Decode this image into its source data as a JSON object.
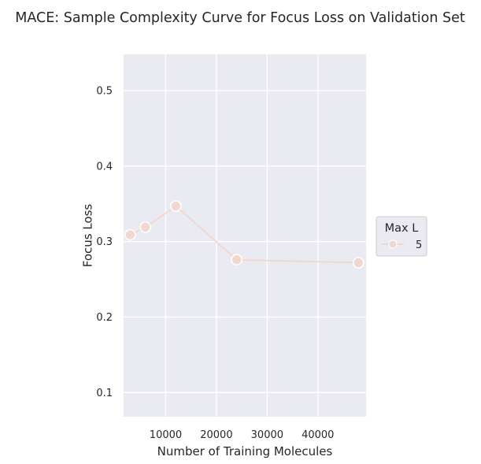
{
  "chart_data": {
    "type": "line",
    "title": "MACE: Sample Complexity Curve for Focus Loss on Validation Set",
    "xlabel": "Number of Training Molecules",
    "ylabel": "Focus Loss",
    "xlim": [
      1700,
      49500
    ],
    "ylim": [
      0.068,
      0.548
    ],
    "xticks": [
      10000,
      20000,
      30000,
      40000
    ],
    "xtick_labels": [
      "10000",
      "20000",
      "30000",
      "40000"
    ],
    "yticks": [
      0.1,
      0.2,
      0.3,
      0.4,
      0.5
    ],
    "ytick_labels": [
      "0.1",
      "0.2",
      "0.3",
      "0.4",
      "0.5"
    ],
    "grid": true,
    "legend": {
      "title": "Max L",
      "placement": "outside-right"
    },
    "series": [
      {
        "name": "5",
        "color": "#f0d8d0",
        "x": [
          3000,
          6000,
          12000,
          24000,
          48000
        ],
        "y": [
          0.309,
          0.319,
          0.347,
          0.276,
          0.272
        ]
      }
    ]
  },
  "colors": {
    "plot_background": "#eaeaf2",
    "grid": "#ffffff",
    "text": "#262626"
  }
}
